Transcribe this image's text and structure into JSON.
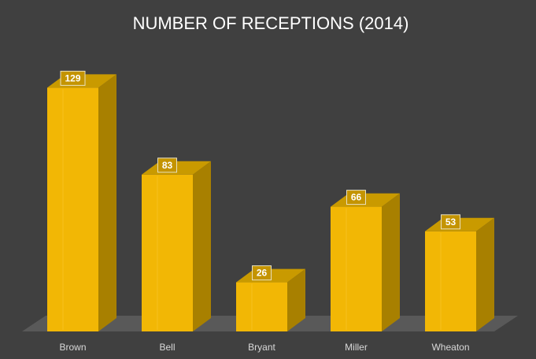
{
  "chart_data": {
    "type": "bar",
    "style": "3d-column",
    "title": "NUMBER OF RECEPTIONS (2014)",
    "categories": [
      "Brown",
      "Bell",
      "Bryant",
      "Miller",
      "Wheaton"
    ],
    "values": [
      129,
      83,
      26,
      66,
      53
    ],
    "xlabel": "",
    "ylabel": "",
    "ylim": [
      0,
      140
    ],
    "grid": false,
    "legend": "none",
    "data_labels": true
  },
  "colors": {
    "background": "#404040",
    "floor": "#595959",
    "bar_front": "#f2b705",
    "bar_side": "#a88000",
    "bar_top": "#c99a00",
    "label_box": "#c49400"
  }
}
